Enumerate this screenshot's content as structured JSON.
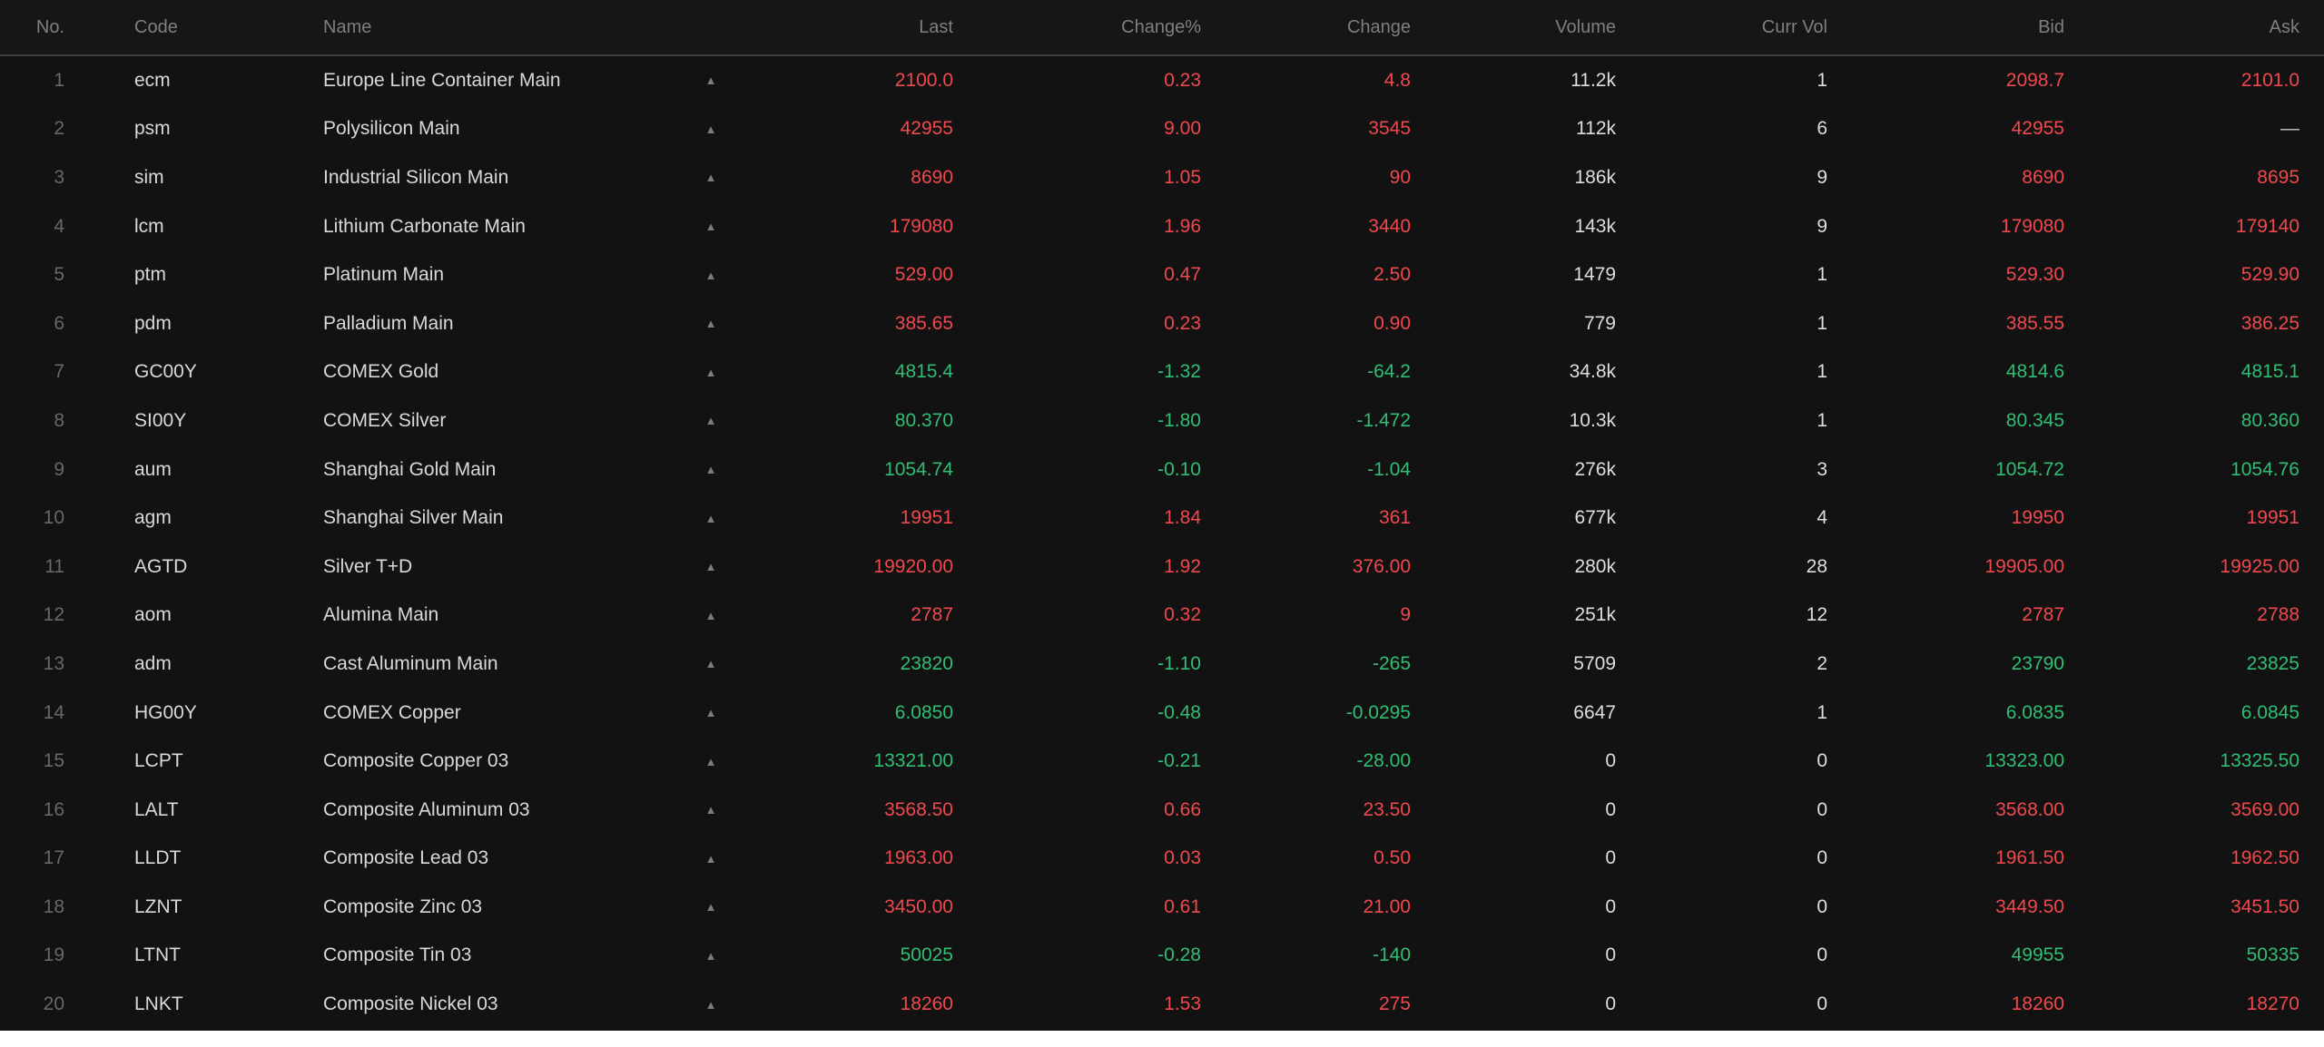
{
  "colors": {
    "up": "#f0484d",
    "down": "#30bd74",
    "neutral": "#c9c9c9"
  },
  "marker_icon": "▲",
  "header": {
    "no": "No.",
    "code": "Code",
    "name": "Name",
    "last": "Last",
    "change_pct": "Change%",
    "change": "Change",
    "volume": "Volume",
    "curr_vol": "Curr Vol",
    "bid": "Bid",
    "ask": "Ask"
  },
  "rows": [
    {
      "no": "1",
      "code": "ecm",
      "name": "Europe Line Container Main",
      "last": "2100.0",
      "change_pct": "0.23",
      "change": "4.8",
      "volume": "11.2k",
      "curr_vol": "1",
      "bid": "2098.7",
      "ask": "2101.0",
      "trend": "up"
    },
    {
      "no": "2",
      "code": "psm",
      "name": "Polysilicon Main",
      "last": "42955",
      "change_pct": "9.00",
      "change": "3545",
      "volume": "112k",
      "curr_vol": "6",
      "bid": "42955",
      "ask": "—",
      "trend": "up"
    },
    {
      "no": "3",
      "code": "sim",
      "name": "Industrial Silicon Main",
      "last": "8690",
      "change_pct": "1.05",
      "change": "90",
      "volume": "186k",
      "curr_vol": "9",
      "bid": "8690",
      "ask": "8695",
      "trend": "up"
    },
    {
      "no": "4",
      "code": "lcm",
      "name": "Lithium Carbonate Main",
      "last": "179080",
      "change_pct": "1.96",
      "change": "3440",
      "volume": "143k",
      "curr_vol": "9",
      "bid": "179080",
      "ask": "179140",
      "trend": "up"
    },
    {
      "no": "5",
      "code": "ptm",
      "name": "Platinum Main",
      "last": "529.00",
      "change_pct": "0.47",
      "change": "2.50",
      "volume": "1479",
      "curr_vol": "1",
      "bid": "529.30",
      "ask": "529.90",
      "trend": "up"
    },
    {
      "no": "6",
      "code": "pdm",
      "name": "Palladium Main",
      "last": "385.65",
      "change_pct": "0.23",
      "change": "0.90",
      "volume": "779",
      "curr_vol": "1",
      "bid": "385.55",
      "ask": "386.25",
      "trend": "up"
    },
    {
      "no": "7",
      "code": "GC00Y",
      "name": "COMEX Gold",
      "last": "4815.4",
      "change_pct": "-1.32",
      "change": "-64.2",
      "volume": "34.8k",
      "curr_vol": "1",
      "bid": "4814.6",
      "ask": "4815.1",
      "trend": "down"
    },
    {
      "no": "8",
      "code": "SI00Y",
      "name": "COMEX Silver",
      "last": "80.370",
      "change_pct": "-1.80",
      "change": "-1.472",
      "volume": "10.3k",
      "curr_vol": "1",
      "bid": "80.345",
      "ask": "80.360",
      "trend": "down"
    },
    {
      "no": "9",
      "code": "aum",
      "name": "Shanghai Gold Main",
      "last": "1054.74",
      "change_pct": "-0.10",
      "change": "-1.04",
      "volume": "276k",
      "curr_vol": "3",
      "bid": "1054.72",
      "ask": "1054.76",
      "trend": "down"
    },
    {
      "no": "10",
      "code": "agm",
      "name": "Shanghai Silver Main",
      "last": "19951",
      "change_pct": "1.84",
      "change": "361",
      "volume": "677k",
      "curr_vol": "4",
      "bid": "19950",
      "ask": "19951",
      "trend": "up"
    },
    {
      "no": "11",
      "code": "AGTD",
      "name": "Silver T+D",
      "last": "19920.00",
      "change_pct": "1.92",
      "change": "376.00",
      "volume": "280k",
      "curr_vol": "28",
      "bid": "19905.00",
      "ask": "19925.00",
      "trend": "up"
    },
    {
      "no": "12",
      "code": "aom",
      "name": "Alumina Main",
      "last": "2787",
      "change_pct": "0.32",
      "change": "9",
      "volume": "251k",
      "curr_vol": "12",
      "bid": "2787",
      "ask": "2788",
      "trend": "up"
    },
    {
      "no": "13",
      "code": "adm",
      "name": "Cast Aluminum Main",
      "last": "23820",
      "change_pct": "-1.10",
      "change": "-265",
      "volume": "5709",
      "curr_vol": "2",
      "bid": "23790",
      "ask": "23825",
      "trend": "down"
    },
    {
      "no": "14",
      "code": "HG00Y",
      "name": "COMEX Copper",
      "last": "6.0850",
      "change_pct": "-0.48",
      "change": "-0.0295",
      "volume": "6647",
      "curr_vol": "1",
      "bid": "6.0835",
      "ask": "6.0845",
      "trend": "down"
    },
    {
      "no": "15",
      "code": "LCPT",
      "name": "Composite Copper 03",
      "last": "13321.00",
      "change_pct": "-0.21",
      "change": "-28.00",
      "volume": "0",
      "curr_vol": "0",
      "bid": "13323.00",
      "ask": "13325.50",
      "trend": "down"
    },
    {
      "no": "16",
      "code": "LALT",
      "name": "Composite Aluminum 03",
      "last": "3568.50",
      "change_pct": "0.66",
      "change": "23.50",
      "volume": "0",
      "curr_vol": "0",
      "bid": "3568.00",
      "ask": "3569.00",
      "trend": "up"
    },
    {
      "no": "17",
      "code": "LLDT",
      "name": "Composite Lead 03",
      "last": "1963.00",
      "change_pct": "0.03",
      "change": "0.50",
      "volume": "0",
      "curr_vol": "0",
      "bid": "1961.50",
      "ask": "1962.50",
      "trend": "up"
    },
    {
      "no": "18",
      "code": "LZNT",
      "name": "Composite Zinc 03",
      "last": "3450.00",
      "change_pct": "0.61",
      "change": "21.00",
      "volume": "0",
      "curr_vol": "0",
      "bid": "3449.50",
      "ask": "3451.50",
      "trend": "up"
    },
    {
      "no": "19",
      "code": "LTNT",
      "name": "Composite Tin 03",
      "last": "50025",
      "change_pct": "-0.28",
      "change": "-140",
      "volume": "0",
      "curr_vol": "0",
      "bid": "49955",
      "ask": "50335",
      "trend": "down"
    },
    {
      "no": "20",
      "code": "LNKT",
      "name": "Composite Nickel 03",
      "last": "18260",
      "change_pct": "1.53",
      "change": "275",
      "volume": "0",
      "curr_vol": "0",
      "bid": "18260",
      "ask": "18270",
      "trend": "up"
    }
  ]
}
